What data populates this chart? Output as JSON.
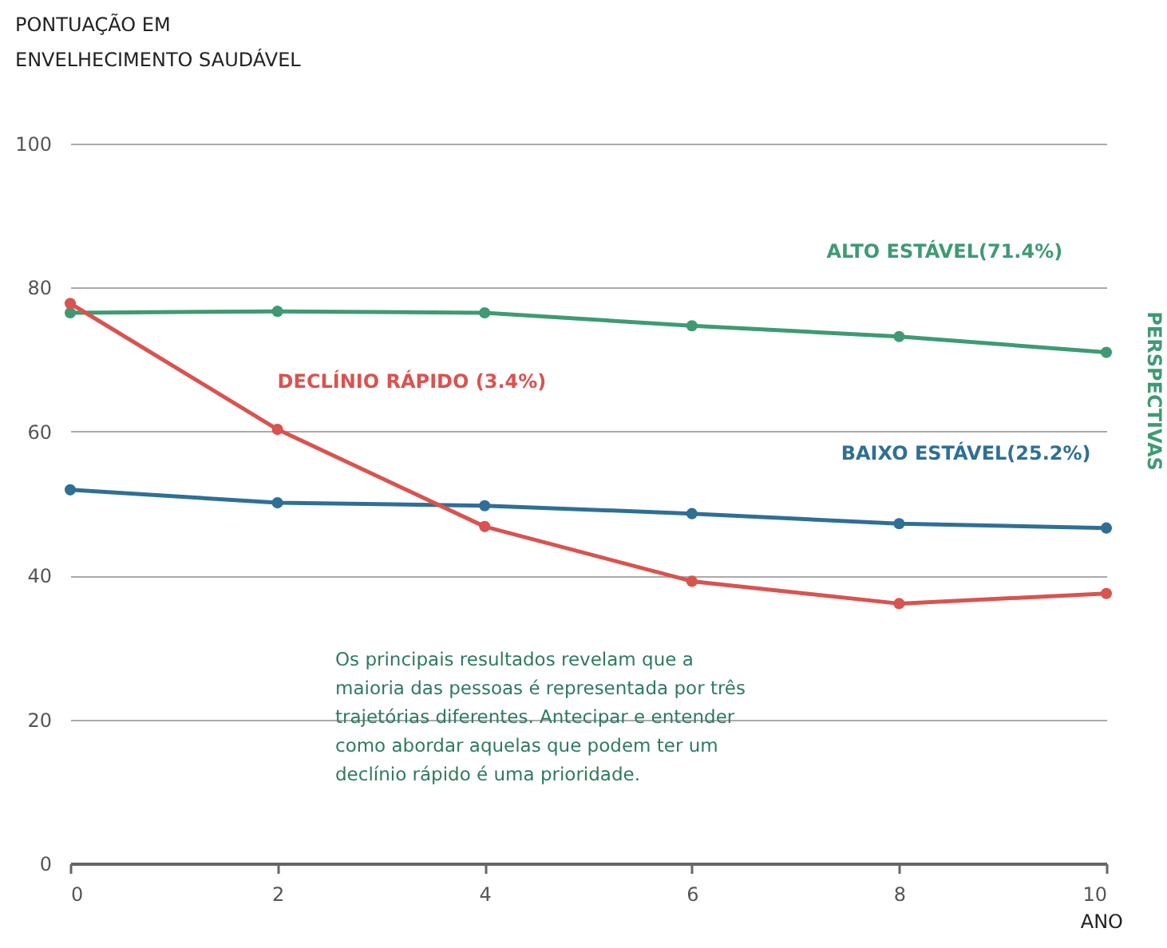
{
  "chart_data": {
    "type": "line",
    "ylabel": "PONTUAÇÃO EM\nENVELHECIMENTO SAUDÁVEL",
    "xlabel": "ANO",
    "x": [
      0,
      2,
      4,
      6,
      8,
      10
    ],
    "series": [
      {
        "name": "ALTO ESTÁVEL(71.4%)",
        "color": "#3f9a74",
        "values": [
          76.5,
          76.7,
          76.5,
          74.7,
          73.2,
          71.0
        ]
      },
      {
        "name": "BAIXO ESTÁVEL(25.2%)",
        "color": "#2f6f96",
        "values": [
          51.9,
          50.1,
          49.7,
          48.6,
          47.2,
          46.6
        ]
      },
      {
        "name": "DECLÍNIO RÁPIDO (3.4%)",
        "color": "#d9534f",
        "values": [
          77.8,
          60.3,
          46.8,
          39.2,
          36.1,
          37.5
        ]
      }
    ],
    "annotations": [
      "PERSPECTIVAS",
      "Os principais resultados revelam que a\nmaioria das pessoas é representada por três\ntrajetórias diferentes. Antecipar e entender\ncomo abordar aquelas que podem ter um\ndeclínio rápido é uma prioridade."
    ],
    "xlim": [
      0,
      10
    ],
    "xticks": [
      0,
      2,
      4,
      6,
      8,
      10
    ],
    "ylim": [
      0,
      100
    ],
    "yticks": [
      0,
      20,
      40,
      60,
      80,
      100
    ],
    "grid": "y",
    "marker": "circle",
    "line_style": "solid"
  }
}
